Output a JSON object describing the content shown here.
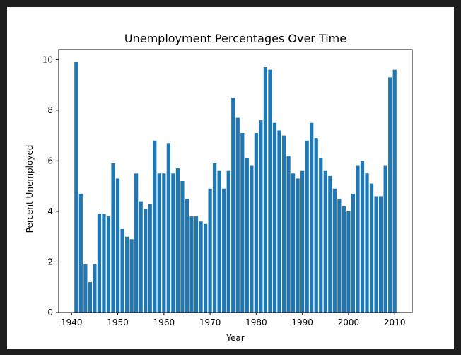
{
  "chart_data": {
    "type": "bar",
    "title": "Unemployment Percentages Over Time",
    "xlabel": "Year",
    "ylabel": "Percent Unemployed",
    "xlim": [
      1937.2,
      2013.8
    ],
    "ylim": [
      0,
      10.4
    ],
    "xticks": [
      1940,
      1950,
      1960,
      1970,
      1980,
      1990,
      2000,
      2010
    ],
    "yticks": [
      0,
      2,
      4,
      6,
      8,
      10
    ],
    "grid": false,
    "bar_color": "#1f77b4",
    "x": [
      1941,
      1942,
      1943,
      1944,
      1945,
      1946,
      1947,
      1948,
      1949,
      1950,
      1951,
      1952,
      1953,
      1954,
      1955,
      1956,
      1957,
      1958,
      1959,
      1960,
      1961,
      1962,
      1963,
      1964,
      1965,
      1966,
      1967,
      1968,
      1969,
      1970,
      1971,
      1972,
      1973,
      1974,
      1975,
      1976,
      1977,
      1978,
      1979,
      1980,
      1981,
      1982,
      1983,
      1984,
      1985,
      1986,
      1987,
      1988,
      1989,
      1990,
      1991,
      1992,
      1993,
      1994,
      1995,
      1996,
      1997,
      1998,
      1999,
      2000,
      2001,
      2002,
      2003,
      2004,
      2005,
      2006,
      2007,
      2008,
      2009,
      2010
    ],
    "values": [
      9.9,
      4.7,
      1.9,
      1.2,
      1.9,
      3.9,
      3.9,
      3.8,
      5.9,
      5.3,
      3.3,
      3.0,
      2.9,
      5.5,
      4.4,
      4.1,
      4.3,
      6.8,
      5.5,
      5.5,
      6.7,
      5.5,
      5.7,
      5.2,
      4.5,
      3.8,
      3.8,
      3.6,
      3.5,
      4.9,
      5.9,
      5.6,
      4.9,
      5.6,
      8.5,
      7.7,
      7.1,
      6.1,
      5.8,
      7.1,
      7.6,
      9.7,
      9.6,
      7.5,
      7.2,
      7.0,
      6.2,
      5.5,
      5.3,
      5.6,
      6.8,
      7.5,
      6.9,
      6.1,
      5.6,
      5.4,
      4.9,
      4.5,
      4.2,
      4.0,
      4.7,
      5.8,
      6.0,
      5.5,
      5.1,
      4.6,
      4.6,
      5.8,
      9.3,
      9.6
    ]
  }
}
